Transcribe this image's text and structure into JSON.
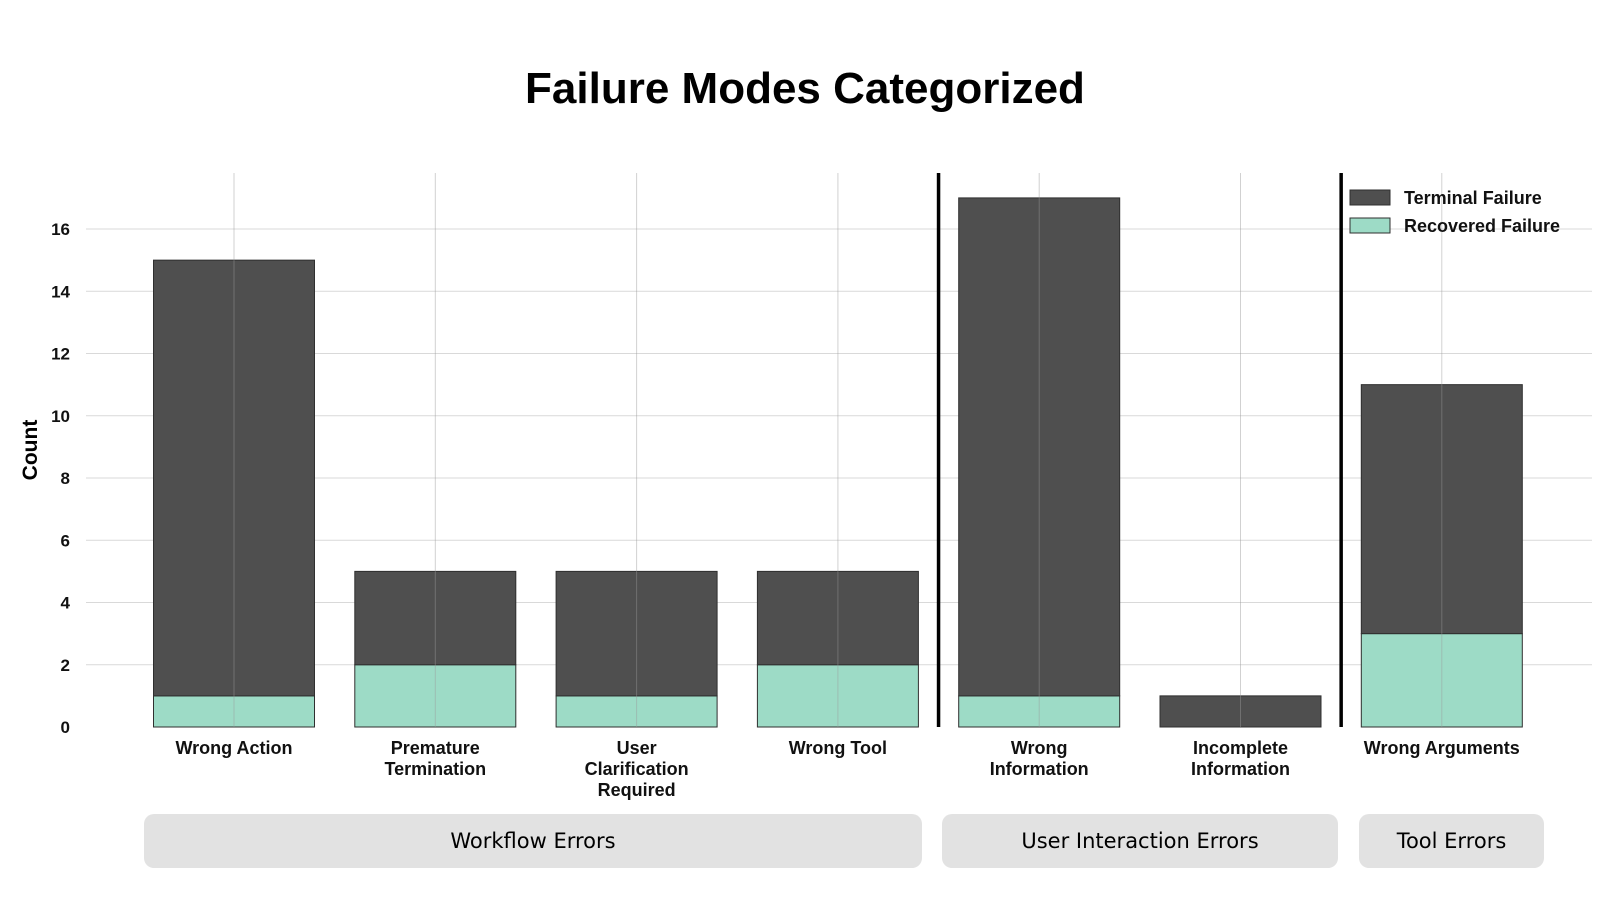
{
  "chart_data": {
    "type": "bar",
    "stacked": true,
    "title": "Failure Modes Categorized",
    "xlabel": "",
    "ylabel": "Count",
    "ylim": [
      0,
      17.8
    ],
    "yticks": [
      0,
      2,
      4,
      6,
      8,
      10,
      12,
      14,
      16
    ],
    "grid": true,
    "legend_position": "top-right",
    "categories": [
      [
        "Wrong Action"
      ],
      [
        "Premature",
        "Termination"
      ],
      [
        "User",
        "Clarification",
        "Required"
      ],
      [
        "Wrong Tool"
      ],
      [
        "Wrong",
        "Information"
      ],
      [
        "Incomplete",
        "Information"
      ],
      [
        "Wrong Arguments"
      ]
    ],
    "series": [
      {
        "name": "Recovered Failure",
        "color": "#9ddbc6",
        "values": [
          1,
          2,
          1,
          2,
          1,
          0,
          3
        ]
      },
      {
        "name": "Terminal Failure",
        "color": "#4f4f4f",
        "values": [
          14,
          3,
          4,
          3,
          16,
          1,
          8
        ]
      }
    ],
    "legend_order": [
      "Terminal Failure",
      "Recovered Failure"
    ],
    "groups": [
      {
        "label": "Workflow Errors",
        "categories": [
          0,
          1,
          2,
          3
        ]
      },
      {
        "label": "User Interaction Errors",
        "categories": [
          4,
          5
        ]
      },
      {
        "label": "Tool Errors",
        "categories": [
          6
        ]
      }
    ]
  }
}
